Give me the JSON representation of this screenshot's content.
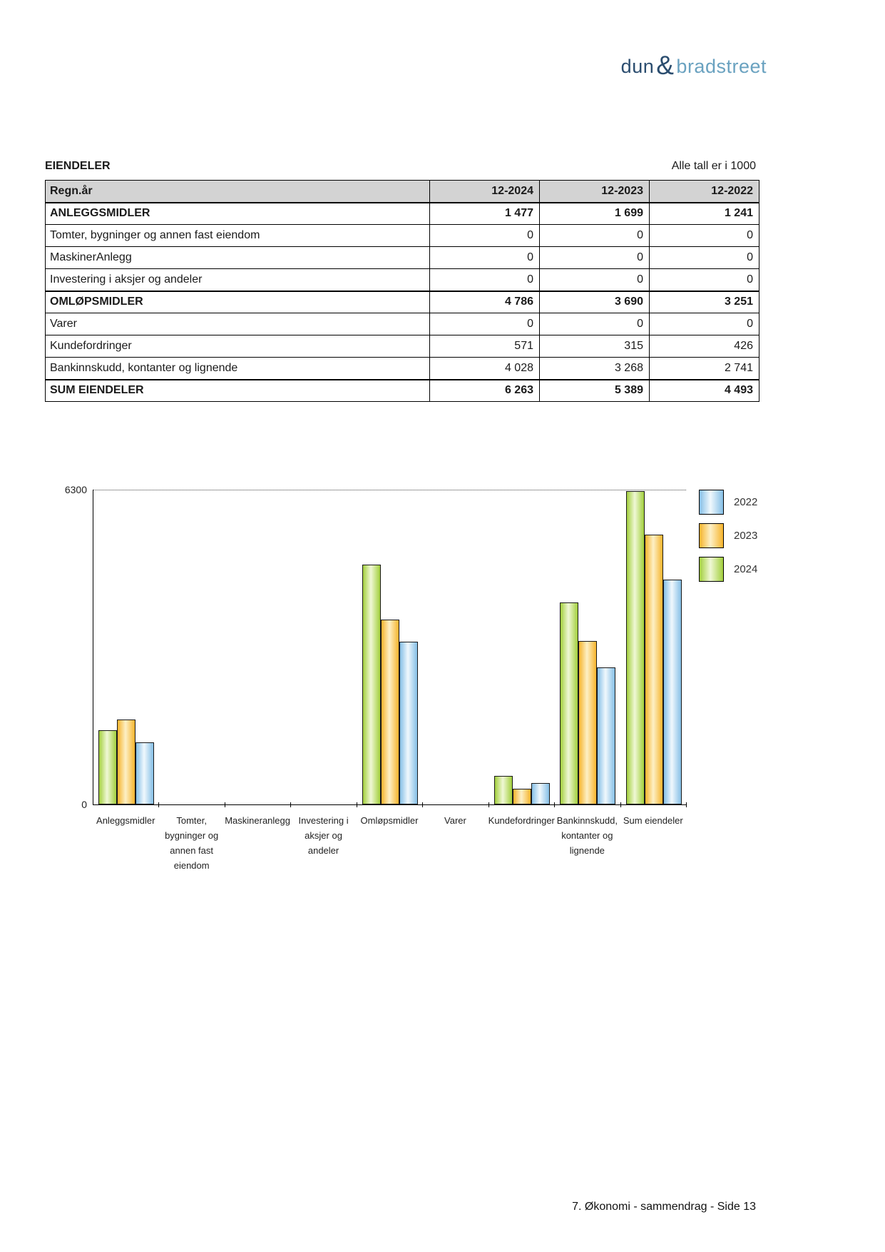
{
  "logo": {
    "part1": "dun",
    "amp": "&",
    "part2": "bradstreet"
  },
  "table": {
    "title": "EIENDELER",
    "unit_note": "Alle tall er i 1000",
    "columns": [
      "Regn.år",
      "12-2024",
      "12-2023",
      "12-2022"
    ],
    "rows": [
      {
        "label": "ANLEGGSMIDLER",
        "bold": true,
        "values": [
          "1 477",
          "1 699",
          "1 241"
        ]
      },
      {
        "label": "Tomter, bygninger og annen fast eiendom",
        "bold": false,
        "values": [
          "0",
          "0",
          "0"
        ]
      },
      {
        "label": "MaskinerAnlegg",
        "bold": false,
        "values": [
          "0",
          "0",
          "0"
        ]
      },
      {
        "label": "Investering i aksjer og andeler",
        "bold": false,
        "values": [
          "0",
          "0",
          "0"
        ]
      },
      {
        "label": "OMLØPSMIDLER",
        "bold": true,
        "values": [
          "4 786",
          "3 690",
          "3 251"
        ]
      },
      {
        "label": "Varer",
        "bold": false,
        "values": [
          "0",
          "0",
          "0"
        ]
      },
      {
        "label": "Kundefordringer",
        "bold": false,
        "values": [
          "571",
          "315",
          "426"
        ]
      },
      {
        "label": "Bankinnskudd, kontanter og lignende",
        "bold": false,
        "values": [
          "4 028",
          "3 268",
          "2 741"
        ]
      },
      {
        "label": "SUM EIENDELER",
        "bold": true,
        "values": [
          "6 263",
          "5 389",
          "4 493"
        ]
      }
    ]
  },
  "chart_data": {
    "type": "bar",
    "title": "",
    "xlabel": "",
    "ylabel": "",
    "categories": [
      "Anleggsmidler",
      "Tomter, bygninger og annen fast eiendom",
      "Maskineranlegg",
      "Investering i aksjer og andeler",
      "Omløpsmidler",
      "Varer",
      "Kundefordringer",
      "Bankinnskudd, kontanter og lignende",
      "Sum eiendeler"
    ],
    "series": [
      {
        "name": "2024",
        "values": [
          1477,
          0,
          0,
          0,
          4786,
          0,
          571,
          4028,
          6263
        ],
        "color": "#a2cf3c",
        "highlight": "#f0f8d6"
      },
      {
        "name": "2023",
        "values": [
          1699,
          0,
          0,
          0,
          3690,
          0,
          315,
          3268,
          5389
        ],
        "color": "#f6b42c",
        "highlight": "#fdf0c6"
      },
      {
        "name": "2022",
        "values": [
          1241,
          0,
          0,
          0,
          3251,
          0,
          426,
          2741,
          4493
        ],
        "color": "#85bfe6",
        "highlight": "#f0f8fd"
      }
    ],
    "bar_order_left_to_right": [
      "2024",
      "2023",
      "2022"
    ],
    "legend": [
      {
        "label": "2022",
        "color": "#85bfe6",
        "highlight": "#f0f8fd"
      },
      {
        "label": "2023",
        "color": "#f6b42c",
        "highlight": "#fdf0c6"
      },
      {
        "label": "2024",
        "color": "#a2cf3c",
        "highlight": "#f0f8d6"
      }
    ],
    "legend_position": "right-top",
    "ylim": [
      0,
      6300
    ],
    "ytick_labels": {
      "top": "6300",
      "bottom": "0"
    },
    "grid": "single dotted horizontal line at y = 6300"
  },
  "footer": {
    "text": "7. Økonomi - sammendrag - Side 13"
  }
}
